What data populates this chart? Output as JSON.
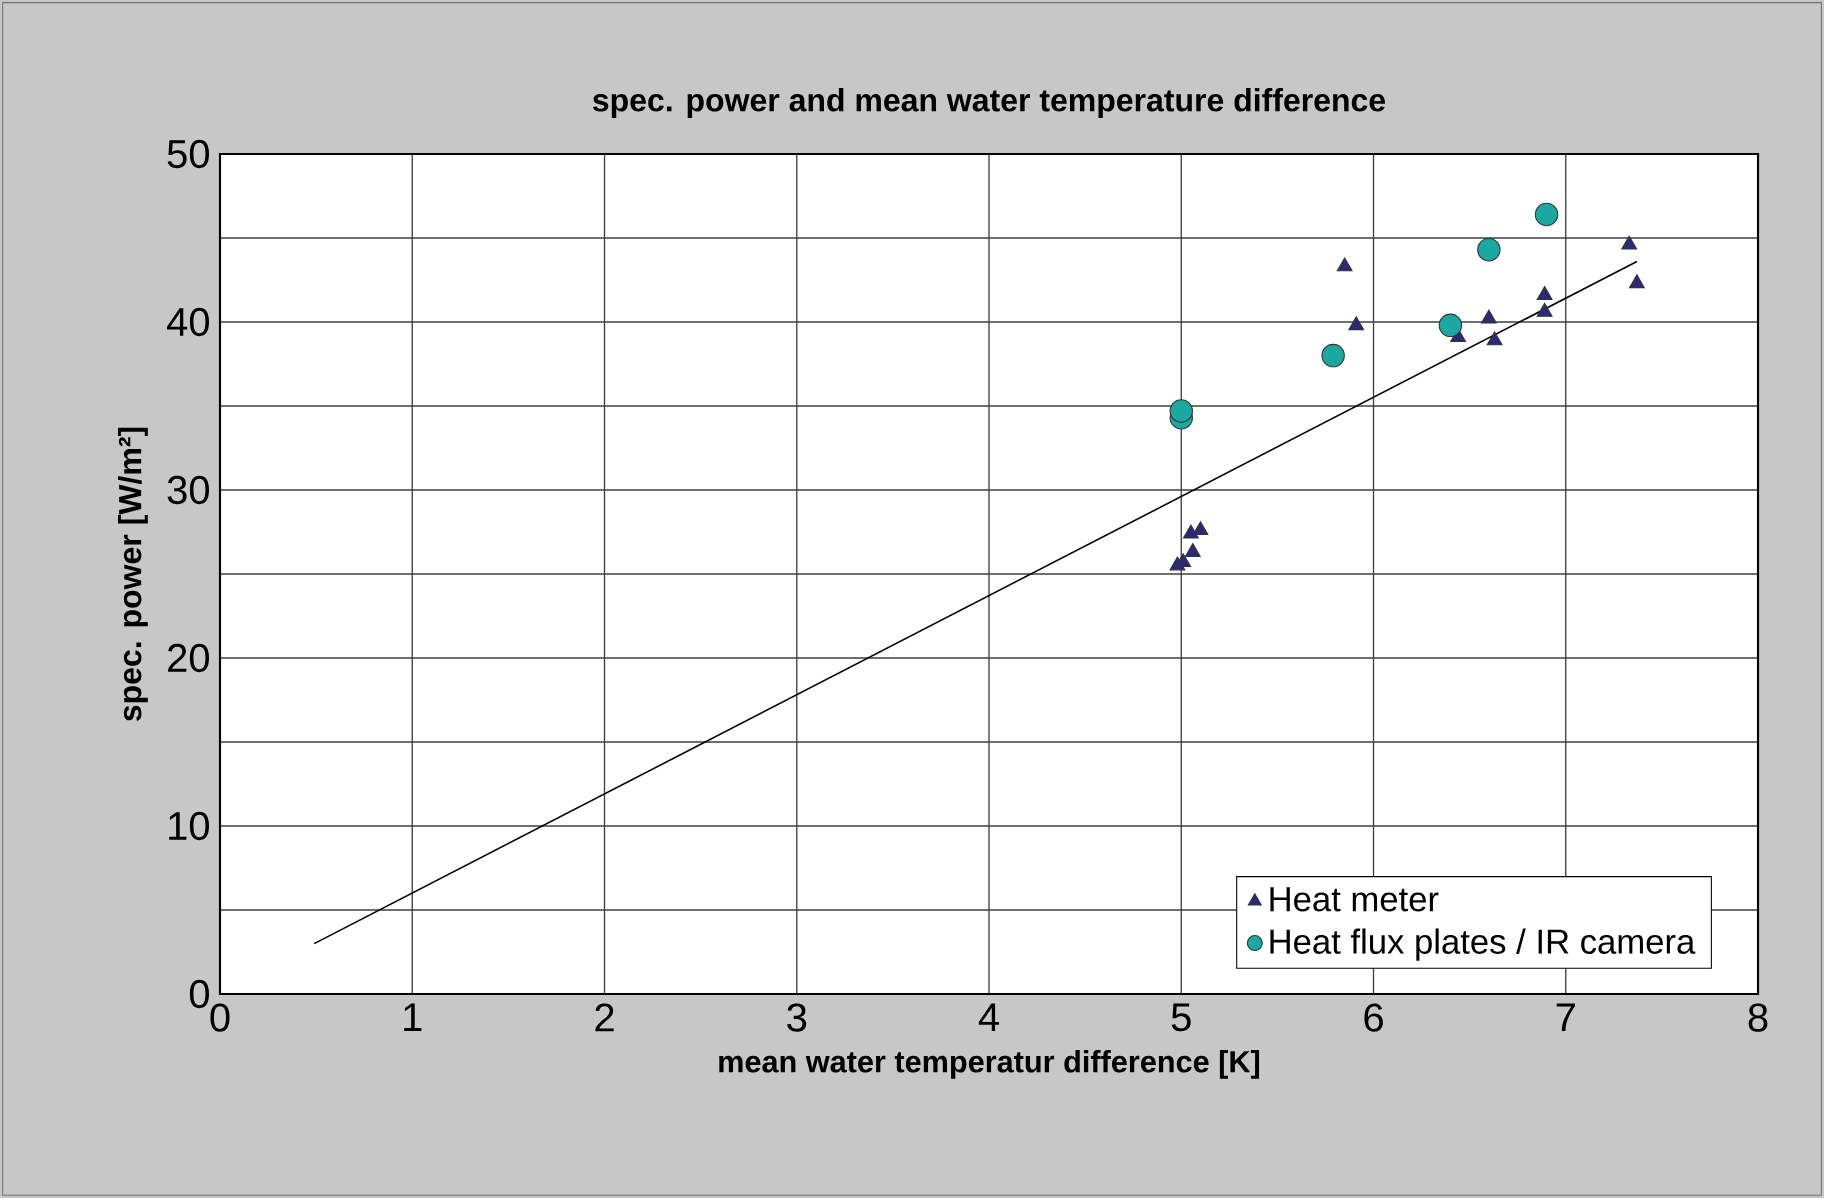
{
  "chart_data": {
    "type": "scatter",
    "title": "spec. power and mean water temperature difference",
    "xlabel": "mean water temperatur difference [K]",
    "ylabel": "spec. power  [W/m²]",
    "xlim": [
      0,
      8
    ],
    "xticks": [
      0,
      1,
      2,
      3,
      4,
      5,
      6,
      7,
      8
    ],
    "ylim": [
      0,
      50
    ],
    "yticks": [
      0,
      {
        "value": 5,
        "label": null
      },
      10,
      {
        "value": 15,
        "label": null
      },
      20,
      {
        "value": 25,
        "label": null
      },
      30,
      {
        "value": 35,
        "label": null
      },
      40,
      {
        "value": 45,
        "label": null
      },
      50
    ],
    "grid": true,
    "legend": "bottom right",
    "series": [
      {
        "name": "Heat meter",
        "marker": "triangle",
        "color": "#2a2a78",
        "x": [
          5.85,
          5.91,
          7.33,
          7.37,
          6.89,
          6.89,
          6.6,
          6.63,
          6.44,
          5.1,
          5.05,
          5.06,
          5.01,
          4.98
        ],
        "values": [
          43.3,
          39.8,
          44.6,
          42.3,
          41.6,
          40.6,
          40.2,
          38.9,
          39.1,
          27.6,
          27.4,
          26.3,
          25.7,
          25.5
        ]
      },
      {
        "name": "Heat flux plates / IR camera",
        "marker": "circle",
        "color": "#1aa8a0",
        "x": [
          5.0,
          5.0,
          5.79,
          6.4,
          6.6,
          6.9
        ],
        "values": [
          34.3,
          34.7,
          38.0,
          39.8,
          44.3,
          46.4
        ]
      },
      {
        "type": "line",
        "color": "#000000",
        "marker": "none",
        "line_style": "solid",
        "x": [
          0.49,
          7.37
        ],
        "values": [
          3.0,
          43.6
        ]
      }
    ]
  }
}
